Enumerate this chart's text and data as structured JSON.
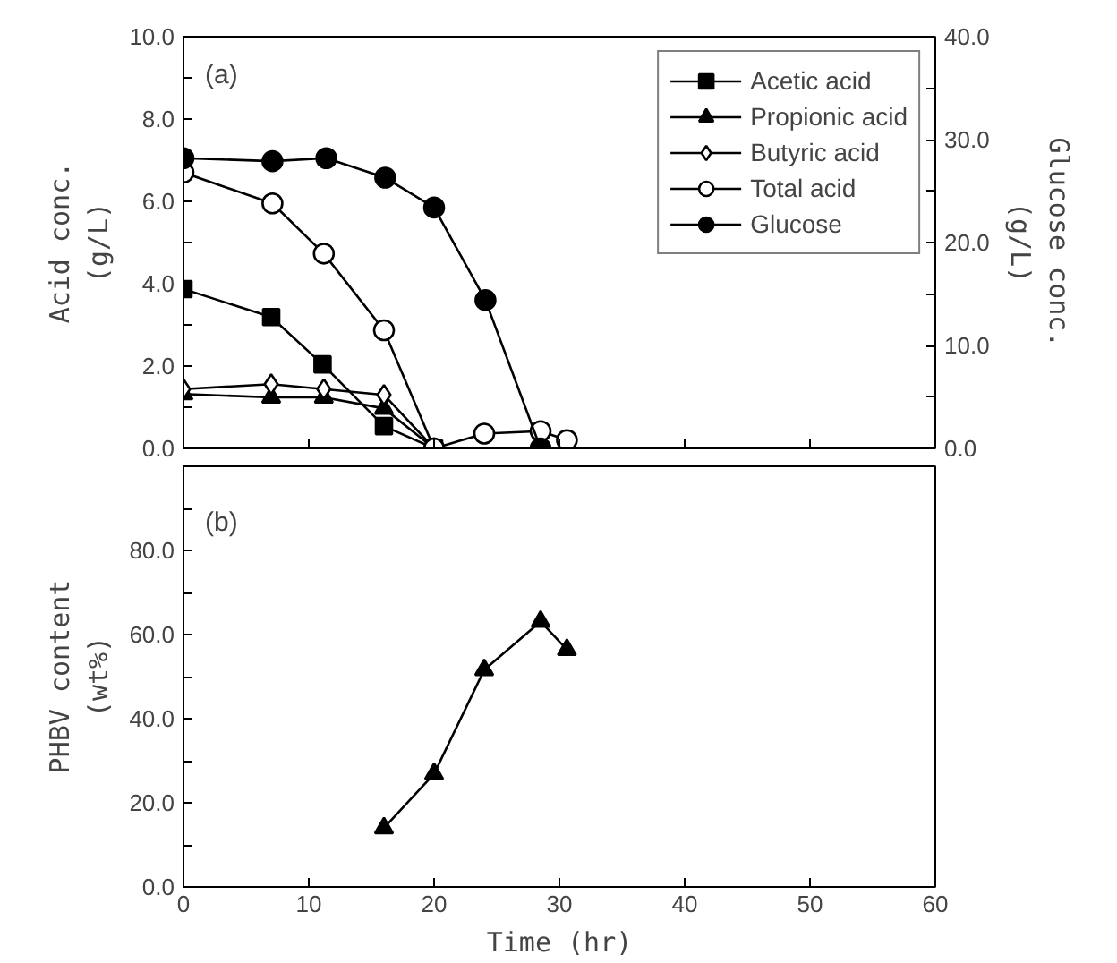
{
  "chart_data": [
    {
      "type": "line",
      "ylabel": "Acid conc.\n(g/L)",
      "y2label": "Glucose conc.\n(g/L)",
      "xlim": [
        0,
        60
      ],
      "xticks": [
        {
          "value": 0,
          "label": null
        },
        {
          "value": 10,
          "label": null
        },
        {
          "value": 20,
          "label": null
        },
        {
          "value": 30,
          "label": null
        },
        {
          "value": 40,
          "label": null
        },
        {
          "value": 50,
          "label": null
        },
        {
          "value": 60,
          "label": null
        }
      ],
      "ylim": [
        0,
        10
      ],
      "yticks": [
        {
          "value": 0,
          "label": "0.0"
        },
        {
          "value": 1,
          "label": null
        },
        {
          "value": 2,
          "label": "2.0"
        },
        {
          "value": 3,
          "label": null
        },
        {
          "value": 4,
          "label": "4.0"
        },
        {
          "value": 5,
          "label": null
        },
        {
          "value": 6,
          "label": "6.0"
        },
        {
          "value": 7,
          "label": null
        },
        {
          "value": 8,
          "label": "8.0"
        },
        {
          "value": 9,
          "label": null
        },
        {
          "value": 10,
          "label": "10.0"
        }
      ],
      "y2lim": [
        0,
        40
      ],
      "y2ticks": [
        {
          "value": 0,
          "label": "0.0"
        },
        {
          "value": 5,
          "label": null
        },
        {
          "value": 10,
          "label": "10.0"
        },
        {
          "value": 15,
          "label": null
        },
        {
          "value": 20,
          "label": "20.0"
        },
        {
          "value": 25,
          "label": null
        },
        {
          "value": 30,
          "label": "30.0"
        },
        {
          "value": 35,
          "label": null
        },
        {
          "value": 40,
          "label": "40.0"
        }
      ],
      "tick_labels": "y",
      "grid": false,
      "legend": "top right",
      "line_style": "solid",
      "annotations": [
        "(a)"
      ],
      "series": [
        {
          "name": "Acetic acid",
          "color": "#000000",
          "marker": "square",
          "x": [
            0,
            7,
            11.1,
            16,
            20
          ],
          "values": [
            3.87,
            3.19,
            2.04,
            0.54,
            0
          ]
        },
        {
          "name": "Propionic acid",
          "color": "#000000",
          "marker": "triangle",
          "x": [
            0,
            7,
            11.2,
            16,
            20
          ],
          "values": [
            1.32,
            1.24,
            1.24,
            0.97,
            0
          ]
        },
        {
          "name": "Butyric acid",
          "color": "#000000",
          "marker": "diamond_open",
          "x": [
            0,
            7,
            11.2,
            16,
            20
          ],
          "values": [
            1.44,
            1.56,
            1.44,
            1.3,
            0
          ]
        },
        {
          "name": "Total acid",
          "color": "#000000",
          "marker": "circle_open",
          "x": [
            0,
            7.1,
            11.2,
            16,
            20,
            24,
            28.5,
            30.6
          ],
          "values": [
            6.7,
            5.95,
            4.73,
            2.87,
            0,
            0.36,
            0.42,
            0.2
          ]
        },
        {
          "name": "Glucose",
          "color": "#000000",
          "marker": "circle",
          "axis": "y2",
          "x": [
            0,
            7.1,
            11.4,
            16.1,
            20,
            24.1,
            28.5
          ],
          "values": [
            28.2,
            27.9,
            28.2,
            26.3,
            23.4,
            14.4,
            0
          ]
        }
      ]
    },
    {
      "type": "line",
      "xlabel": "Time (hr)",
      "ylabel": "PHBV content\n(wt%)",
      "xlim": [
        0,
        60
      ],
      "xticks": [
        0,
        10,
        20,
        30,
        40,
        50,
        60
      ],
      "ylim": [
        0,
        100
      ],
      "yticks": [
        {
          "value": 0,
          "label": "0.0"
        },
        {
          "value": 10,
          "label": null
        },
        {
          "value": 20,
          "label": "20.0"
        },
        {
          "value": 30,
          "label": null
        },
        {
          "value": 40,
          "label": "40.0"
        },
        {
          "value": 50,
          "label": null
        },
        {
          "value": 60,
          "label": "60.0"
        },
        {
          "value": 70,
          "label": null
        },
        {
          "value": 80,
          "label": "80.0"
        },
        {
          "value": 90,
          "label": null
        },
        {
          "value": 100,
          "label": null
        }
      ],
      "grid": false,
      "legend": false,
      "line_style": "solid",
      "marker": "triangle",
      "annotations": [
        "(b)"
      ],
      "series": [
        {
          "color": "#000000",
          "x": [
            16,
            20,
            24,
            28.5,
            30.6
          ],
          "values": [
            14.0,
            26.9,
            51.6,
            63.1,
            56.4
          ]
        }
      ]
    }
  ]
}
